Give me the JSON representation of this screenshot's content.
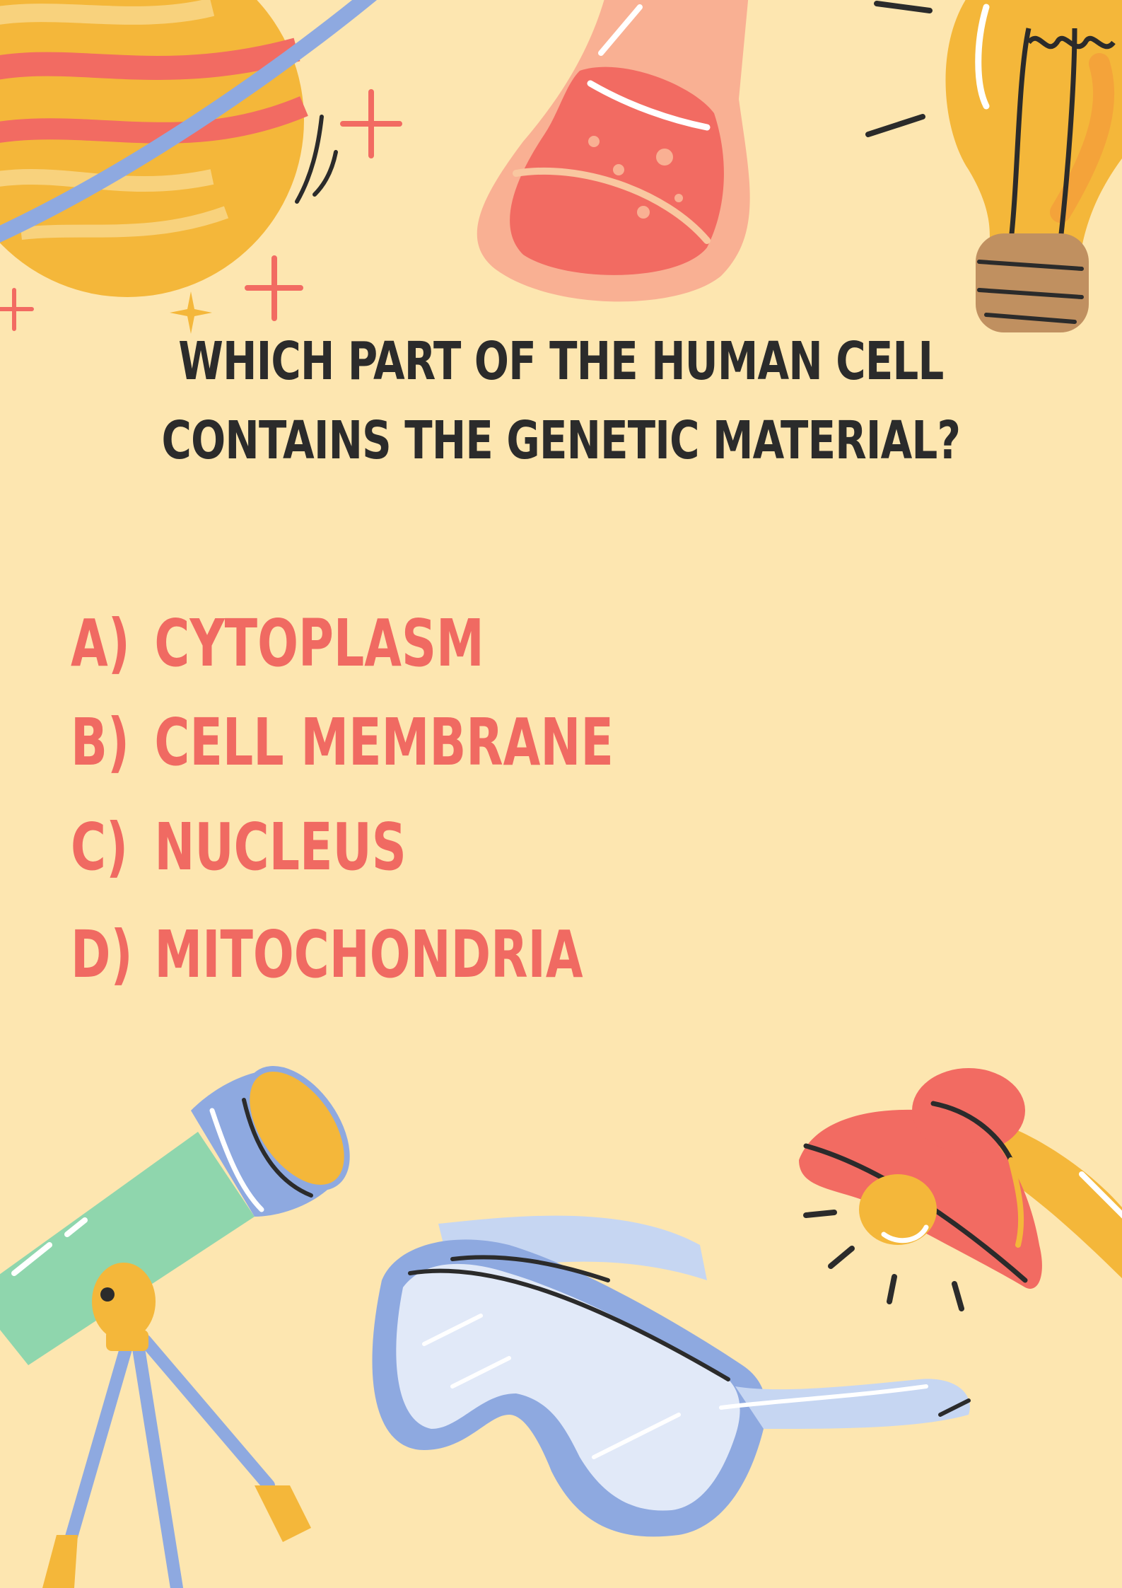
{
  "colors": {
    "background": "#fde6b0",
    "question_text": "#2b2b2b",
    "option_text": "#f06a62",
    "accent_coral": "#f26b62",
    "accent_yellow": "#f4b73a",
    "accent_blue": "#8ea9e0",
    "accent_green": "#8fd6ad"
  },
  "question": {
    "line1": "WHICH PART OF THE HUMAN CELL",
    "line2": "CONTAINS THE GENETIC MATERIAL?"
  },
  "options": [
    {
      "letter": "A)",
      "text": "CYTOPLASM"
    },
    {
      "letter": "B)",
      "text": "CELL MEMBRANE"
    },
    {
      "letter": "C)",
      "text": "NUCLEUS"
    },
    {
      "letter": "D)",
      "text": "MITOCHONDRIA"
    }
  ],
  "illustrations": [
    "planet-icon",
    "flask-icon",
    "lightbulb-icon",
    "sparkle-icon",
    "telescope-icon",
    "safety-goggles-icon",
    "lamp-icon"
  ]
}
